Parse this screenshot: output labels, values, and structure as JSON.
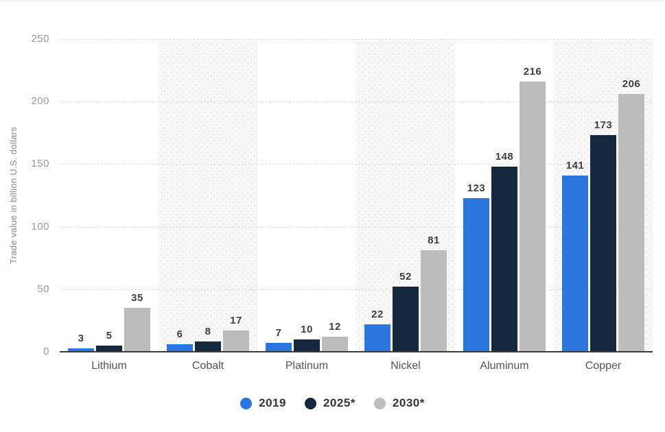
{
  "chart_data": {
    "type": "bar",
    "title": "",
    "xlabel": "",
    "ylabel": "Trade value in billion U.S. dollars",
    "ylim": [
      0,
      250
    ],
    "y_ticks": [
      "250",
      "200",
      "150",
      "100",
      "50",
      "0"
    ],
    "grid": "horizontal-dotted",
    "legend_position": "bottom",
    "categories": [
      "Lithium",
      "Cobalt",
      "Platinum",
      "Nickel",
      "Aluminum",
      "Copper"
    ],
    "series": [
      {
        "name": "2019",
        "color": "#2B76DC",
        "values": [
          3,
          6,
          7,
          22,
          123,
          141
        ]
      },
      {
        "name": "2025*",
        "color": "#14293E",
        "values": [
          5,
          8,
          10,
          52,
          148,
          173
        ]
      },
      {
        "name": "2030*",
        "color": "#BCBCBC",
        "values": [
          35,
          17,
          12,
          81,
          216,
          206
        ]
      }
    ],
    "shaded_category_columns": [
      "Cobalt",
      "Nickel",
      "Copper"
    ]
  },
  "colors": {
    "background": "#FFFFFF",
    "band": "#F7F7F7",
    "band_dot": "#E9E9E9",
    "gridline": "#D5D5D5",
    "baseline": "#3C3C3C",
    "tick_text": "#9B9B9B",
    "category_text": "#555555",
    "value_text": "#3F3F3F",
    "legend_text": "#353535",
    "axis_title_text": "#8C8C8C"
  }
}
